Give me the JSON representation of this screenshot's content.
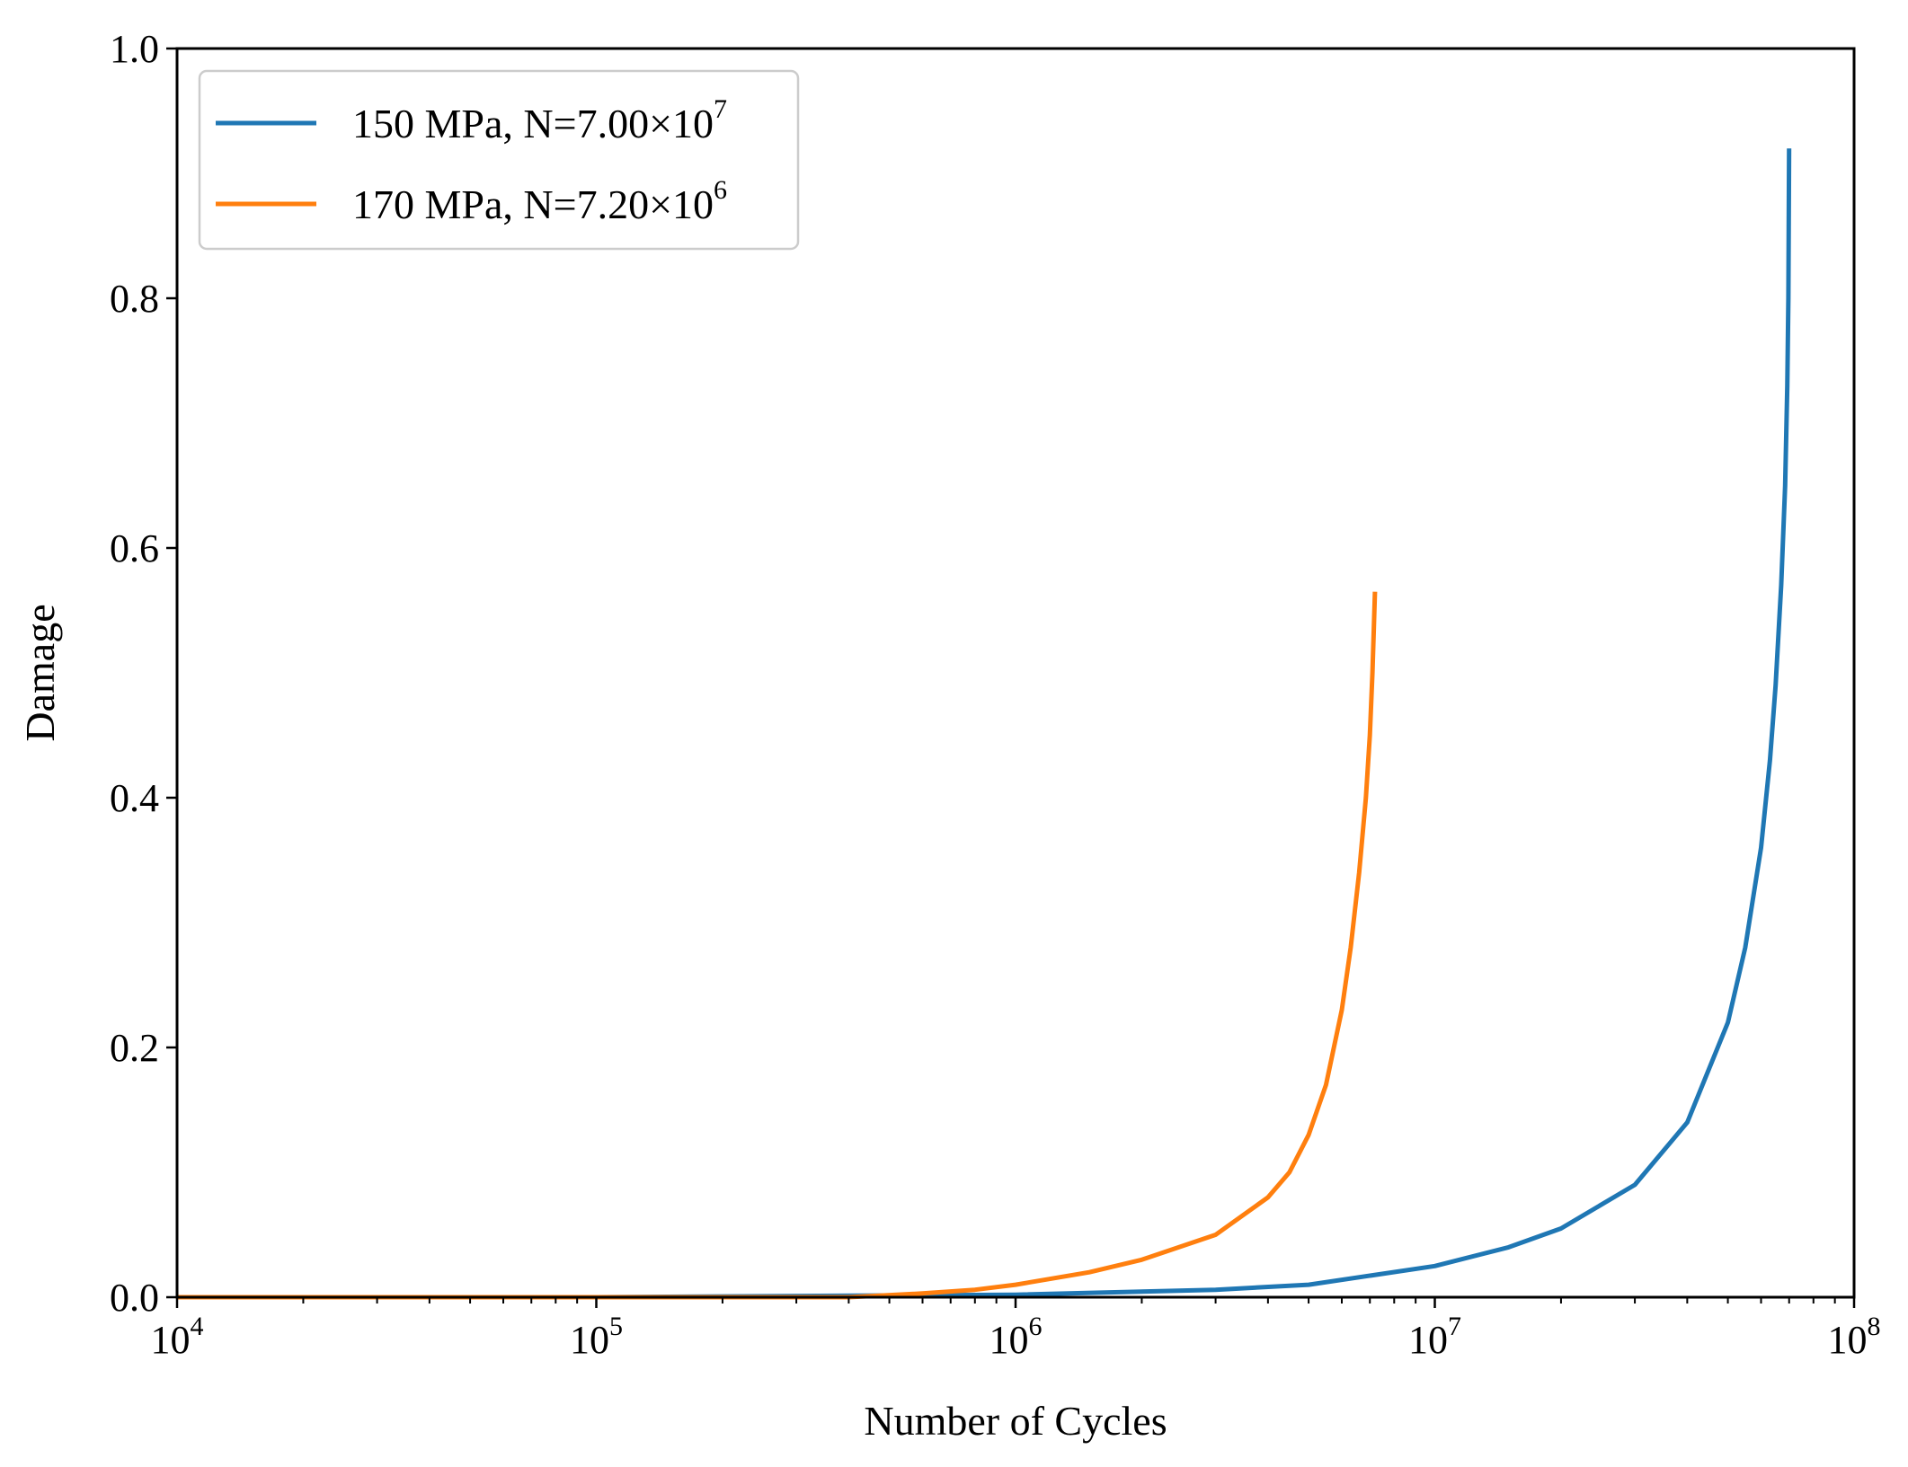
{
  "chart_data": {
    "type": "line",
    "title": "",
    "xlabel": "Number of Cycles",
    "ylabel": "Damage",
    "xscale": "log",
    "xlim": [
      10000,
      100000000
    ],
    "ylim": [
      0,
      1.0
    ],
    "grid": false,
    "legend_position": "top-left",
    "x_ticks": [
      {
        "value": 10000,
        "base": "10",
        "exp": "4"
      },
      {
        "value": 100000,
        "base": "10",
        "exp": "5"
      },
      {
        "value": 1000000,
        "base": "10",
        "exp": "6"
      },
      {
        "value": 10000000,
        "base": "10",
        "exp": "7"
      },
      {
        "value": 100000000,
        "base": "10",
        "exp": "8"
      }
    ],
    "y_ticks": [
      {
        "value": 0.0,
        "label": "0.0"
      },
      {
        "value": 0.2,
        "label": "0.2"
      },
      {
        "value": 0.4,
        "label": "0.4"
      },
      {
        "value": 0.6,
        "label": "0.6"
      },
      {
        "value": 0.8,
        "label": "0.8"
      },
      {
        "value": 1.0,
        "label": "1.0"
      }
    ],
    "series": [
      {
        "name": "150 MPa, N=7.00×10^7",
        "legend_main": "150 MPa, N=7.00×10",
        "legend_exp": "7",
        "color": "#1f77b4",
        "x": [
          10000,
          100000,
          1000000,
          3000000,
          5000000,
          10000000,
          15000000,
          20000000,
          30000000,
          40000000,
          50000000,
          55000000,
          60000000,
          63000000,
          65000000,
          67000000,
          68500000,
          69300000,
          69700000,
          70000000
        ],
        "y": [
          0.0,
          0.0,
          0.002,
          0.006,
          0.01,
          0.025,
          0.04,
          0.055,
          0.09,
          0.14,
          0.22,
          0.28,
          0.36,
          0.43,
          0.49,
          0.57,
          0.65,
          0.73,
          0.8,
          0.92
        ]
      },
      {
        "name": "170 MPa, N=7.20×10^6",
        "legend_main": "170 MPa, N=7.20×10",
        "legend_exp": "6",
        "color": "#ff7f0e",
        "x": [
          10000,
          100000,
          400000,
          600000,
          800000,
          1000000,
          1500000,
          2000000,
          3000000,
          4000000,
          4500000,
          5000000,
          5500000,
          6000000,
          6300000,
          6600000,
          6850000,
          7000000,
          7100000,
          7200000
        ],
        "y": [
          0.0,
          0.0,
          0.0,
          0.003,
          0.006,
          0.01,
          0.02,
          0.03,
          0.05,
          0.08,
          0.1,
          0.13,
          0.17,
          0.23,
          0.28,
          0.34,
          0.4,
          0.45,
          0.5,
          0.565
        ]
      }
    ]
  }
}
